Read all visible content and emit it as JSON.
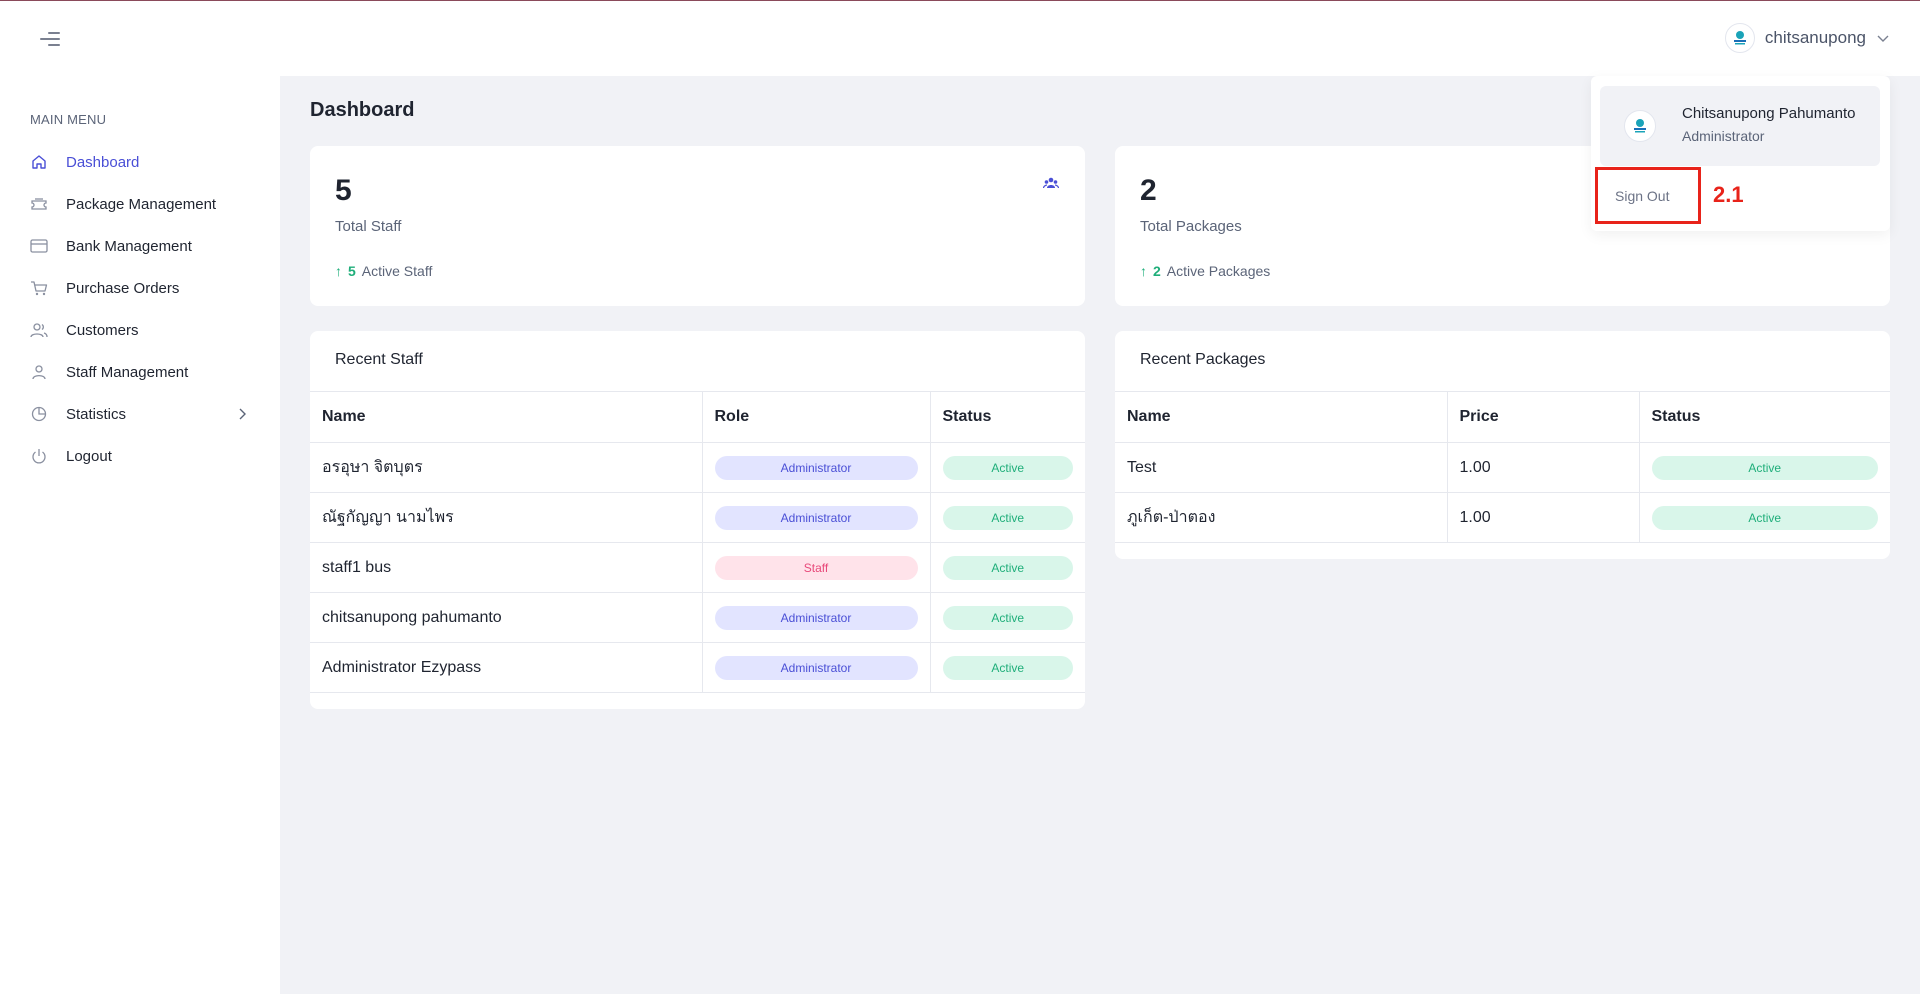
{
  "header": {
    "user_name": "chitsanupong"
  },
  "sidebar": {
    "title": "MAIN MENU",
    "items": [
      {
        "label": "Dashboard",
        "icon": "home-icon",
        "active": true
      },
      {
        "label": "Package Management",
        "icon": "ticket-icon"
      },
      {
        "label": "Bank Management",
        "icon": "credit-card-icon"
      },
      {
        "label": "Purchase Orders",
        "icon": "cart-icon"
      },
      {
        "label": "Customers",
        "icon": "users-icon"
      },
      {
        "label": "Staff Management",
        "icon": "user-icon"
      },
      {
        "label": "Statistics",
        "icon": "pie-chart-icon",
        "has_children": true
      },
      {
        "label": "Logout",
        "icon": "power-icon"
      }
    ]
  },
  "page": {
    "title": "Dashboard"
  },
  "stats": {
    "staff": {
      "value": "5",
      "label": "Total Staff",
      "active_count": "5",
      "active_label": "Active Staff"
    },
    "packages": {
      "value": "2",
      "label": "Total Packages",
      "active_count": "2",
      "active_label": "Active Packages"
    }
  },
  "recent_staff": {
    "title": "Recent Staff",
    "columns": [
      "Name",
      "Role",
      "Status"
    ],
    "rows": [
      {
        "name": "อรอุษา จิตบุตร",
        "role": "Administrator",
        "status": "Active"
      },
      {
        "name": "ณัฐกัญญา นามไพร",
        "role": "Administrator",
        "status": "Active"
      },
      {
        "name": "staff1 bus",
        "role": "Staff",
        "status": "Active"
      },
      {
        "name": "chitsanupong pahumanto",
        "role": "Administrator",
        "status": "Active"
      },
      {
        "name": "Administrator Ezypass",
        "role": "Administrator",
        "status": "Active"
      }
    ]
  },
  "recent_packages": {
    "title": "Recent Packages",
    "columns": [
      "Name",
      "Price",
      "Status"
    ],
    "rows": [
      {
        "name": "Test",
        "price": "1.00",
        "status": "Active"
      },
      {
        "name": "ภูเก็ต-ป่าตอง",
        "price": "1.00",
        "status": "Active"
      }
    ]
  },
  "dropdown": {
    "full_name": "Chitsanupong Pahumanto",
    "role": "Administrator",
    "sign_out": "Sign Out"
  },
  "annotation": {
    "label": "2.1",
    "color": "#e8231a"
  },
  "colors": {
    "accent": "#4a4fd6",
    "success": "#1fae7a",
    "danger": "#e8497a"
  }
}
